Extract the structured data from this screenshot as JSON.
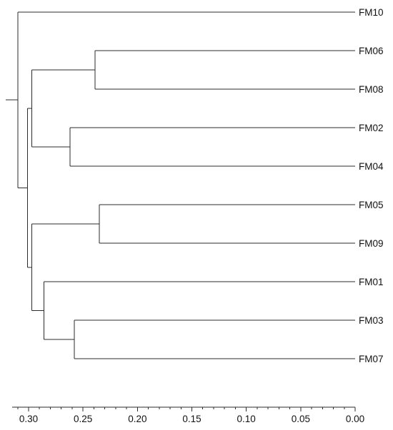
{
  "dendrogram": {
    "leaves": [
      "FM10",
      "FM06",
      "FM08",
      "FM02",
      "FM04",
      "FM05",
      "FM09",
      "FM01",
      "FM03",
      "FM07"
    ],
    "merges": [
      {
        "id": "a",
        "children": [
          "FM05",
          "FM09"
        ],
        "height": 0.235
      },
      {
        "id": "b",
        "children": [
          "FM06",
          "FM08"
        ],
        "height": 0.239
      },
      {
        "id": "c",
        "children": [
          "FM03",
          "FM07"
        ],
        "height": 0.258
      },
      {
        "id": "d",
        "children": [
          "FM02",
          "FM04"
        ],
        "height": 0.262
      },
      {
        "id": "e",
        "children": [
          "FM01",
          "c"
        ],
        "height": 0.286
      },
      {
        "id": "f",
        "children": [
          "a",
          "e"
        ],
        "height": 0.297
      },
      {
        "id": "g",
        "children": [
          "b",
          "d"
        ],
        "height": 0.297
      },
      {
        "id": "h",
        "children": [
          "g",
          "f"
        ],
        "height": 0.301
      },
      {
        "id": "root",
        "children": [
          "FM10",
          "h"
        ],
        "height": 0.31
      }
    ]
  },
  "axis": {
    "ticks": [
      {
        "value": 0.3,
        "label": "0.30"
      },
      {
        "value": 0.25,
        "label": "0.25"
      },
      {
        "value": 0.2,
        "label": "0.20"
      },
      {
        "value": 0.15,
        "label": "0.15"
      },
      {
        "value": 0.1,
        "label": "0.10"
      },
      {
        "value": 0.05,
        "label": "0.05"
      },
      {
        "value": 0.0,
        "label": "0.00"
      }
    ],
    "range": [
      0.315,
      0.0
    ]
  }
}
